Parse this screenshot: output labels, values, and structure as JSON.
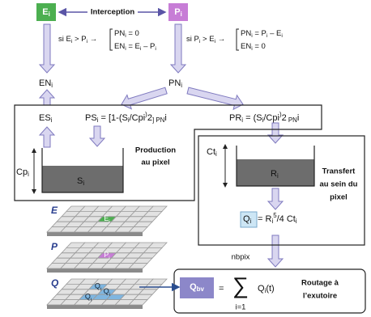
{
  "top": {
    "E": [
      "E",
      "i"
    ],
    "interception": "Interception",
    "P": [
      "P",
      "i"
    ]
  },
  "rules": {
    "left": {
      "condition": [
        "si E",
        "i",
        " > P",
        "i",
        " →"
      ],
      "line1": [
        "PN",
        "i",
        " = 0"
      ],
      "line2": [
        "EN",
        "i",
        " = E",
        "i",
        " – P",
        "i"
      ]
    },
    "right": {
      "condition": [
        "si P",
        "i",
        " > E",
        "i",
        " →"
      ],
      "line1": [
        "PN",
        "i",
        " = P",
        "i",
        " – E",
        "i"
      ],
      "line2": [
        "EN",
        "i",
        " = 0"
      ]
    }
  },
  "production": {
    "EN": [
      "EN",
      "i"
    ],
    "PN": [
      "PN",
      "i"
    ],
    "ES": [
      "ES",
      "i"
    ],
    "PS": [
      "PS",
      "i",
      " = [1-(S",
      "i",
      "/Cp",
      "i",
      ")",
      "2",
      "] PN",
      "i"
    ],
    "PR": [
      "PR",
      "i",
      " = (S",
      "i",
      "/Cp",
      "i",
      ")",
      "2",
      " PN",
      "i"
    ],
    "Cp": [
      "Cp",
      "i"
    ],
    "S": [
      "S",
      "i"
    ],
    "label": [
      "Production",
      "au pixel"
    ]
  },
  "transfer": {
    "Ct": [
      "Ct",
      "i"
    ],
    "R": [
      "R",
      "i"
    ],
    "Q": [
      "Q",
      "i"
    ],
    "formula": [
      " = R",
      "i",
      "5",
      "/4 Ct",
      "i"
    ],
    "label": [
      "Transfert",
      "au sein du",
      "pixel"
    ]
  },
  "routing": {
    "Qbv": [
      "Q",
      "bv"
    ],
    "equals": "=",
    "sum_top": "nbpix",
    "sigma": "∑",
    "sum_bottom": "i=1",
    "term": [
      "Q",
      "i",
      "(t)"
    ],
    "label": [
      "Routage à",
      "l’exutoire"
    ]
  },
  "grids": {
    "layers": [
      "E",
      "P",
      "Q"
    ],
    "E_cell": [
      "E",
      "i"
    ],
    "P_cell": [
      "P",
      "i"
    ],
    "Q_cells": [
      [
        "Q",
        "i"
      ],
      [
        "Q",
        "i"
      ],
      [
        "Q",
        "i"
      ]
    ]
  }
}
